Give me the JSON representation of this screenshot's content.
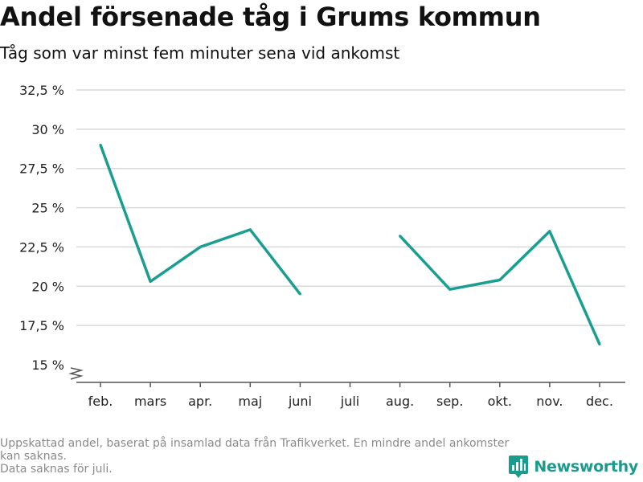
{
  "title": "Andel försenade tåg i Grums kommun",
  "subtitle": "Tåg som var minst fem minuter sena vid ankomst",
  "footnote": {
    "line1": "Uppskattad andel, baserat på insamlad data från Trafikverket. En mindre andel ankomster kan saknas.",
    "line2": "Data saknas för juli."
  },
  "brand": {
    "name": "Newsworthy",
    "color": "#1b9b8e"
  },
  "chart_data": {
    "type": "line",
    "categories": [
      "feb.",
      "mars",
      "apr.",
      "maj",
      "juni",
      "juli",
      "aug.",
      "sep.",
      "okt.",
      "nov.",
      "dec."
    ],
    "series": [
      {
        "values": [
          29.0,
          20.3,
          22.5,
          23.6,
          19.5,
          null,
          23.2,
          19.8,
          20.4,
          23.5,
          16.3
        ],
        "color": "#1a9e8f"
      }
    ],
    "yticks": [
      "15 %",
      "17,5 %",
      "20 %",
      "22,5 %",
      "25 %",
      "27,5 %",
      "30 %",
      "32,5 %"
    ],
    "ytick_values": [
      15,
      17.5,
      20,
      22.5,
      25,
      27.5,
      30,
      32.5
    ],
    "ylim": [
      15,
      32.5
    ],
    "grid": true,
    "axis_break": true
  }
}
